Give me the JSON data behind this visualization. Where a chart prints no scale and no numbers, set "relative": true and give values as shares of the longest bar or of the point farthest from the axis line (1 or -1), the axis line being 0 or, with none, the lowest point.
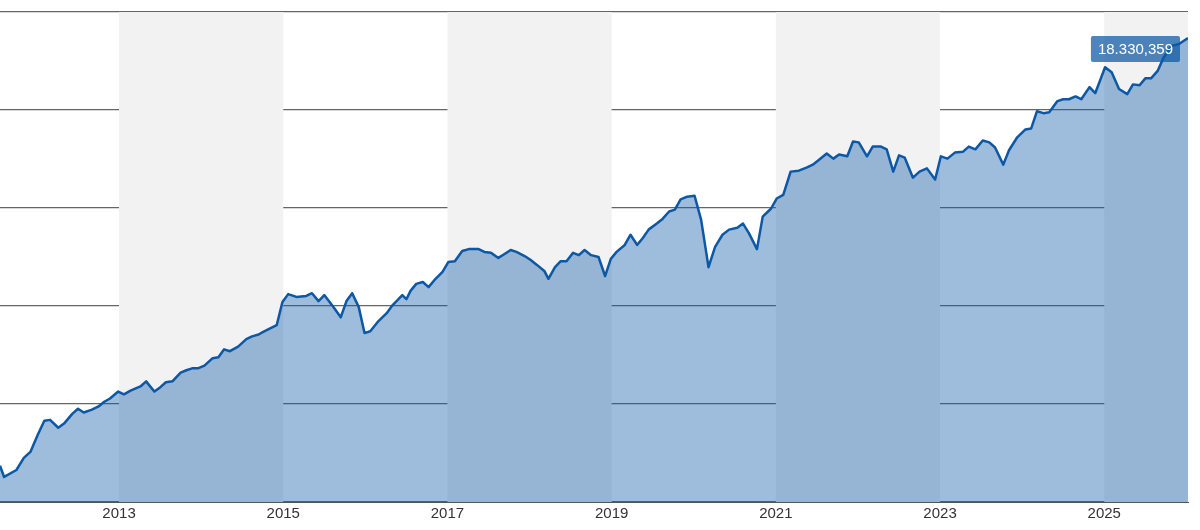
{
  "chart_data": {
    "type": "area",
    "relative": true,
    "grid": "y",
    "annotations": [
      {
        "text": "18.330,359",
        "x": 2026.02,
        "y": 1
      }
    ],
    "tick_labels": "x",
    "legend": false,
    "marker": "none",
    "line_style": "solid",
    "xlim": [
      2011.55,
      2026.02
    ],
    "xticks": [
      2013,
      2015,
      2017,
      2019,
      2021,
      2023,
      2025
    ],
    "bands": [
      {
        "axis": "x",
        "from": 2013,
        "to": 2015,
        "color": "#f2f2f2"
      },
      {
        "axis": "x",
        "from": 2017,
        "to": 2019,
        "color": "#f2f2f2"
      },
      {
        "axis": "x",
        "from": 2021,
        "to": 2023,
        "color": "#f2f2f2"
      },
      {
        "axis": "x",
        "from": 2025,
        "to": 2026.02,
        "color": "#f2f2f2"
      }
    ],
    "series": [
      {
        "color": "#0d58a5",
        "x": [
          2011.55,
          2011.6,
          2011.75,
          2011.84,
          2011.92,
          2012.01,
          2012.09,
          2012.16,
          2012.26,
          2012.33,
          2012.43,
          2012.5,
          2012.57,
          2012.67,
          2012.75,
          2012.82,
          2012.89,
          2012.99,
          2013.06,
          2013.14,
          2013.26,
          2013.33,
          2013.43,
          2013.5,
          2013.57,
          2013.65,
          2013.75,
          2013.82,
          2013.89,
          2013.96,
          2014.04,
          2014.14,
          2014.21,
          2014.28,
          2014.35,
          2014.45,
          2014.55,
          2014.62,
          2014.7,
          2014.75,
          2014.84,
          2014.92,
          2014.99,
          2015.06,
          2015.16,
          2015.28,
          2015.35,
          2015.43,
          2015.5,
          2015.62,
          2015.7,
          2015.77,
          2015.84,
          2015.92,
          2015.99,
          2016.06,
          2016.16,
          2016.26,
          2016.33,
          2016.38,
          2016.45,
          2016.5,
          2016.55,
          2016.62,
          2016.7,
          2016.77,
          2016.84,
          2016.94,
          2017.01,
          2017.09,
          2017.18,
          2017.26,
          2017.38,
          2017.45,
          2017.53,
          2017.62,
          2017.7,
          2017.77,
          2017.84,
          2017.94,
          2018.01,
          2018.09,
          2018.18,
          2018.23,
          2018.31,
          2018.38,
          2018.45,
          2018.53,
          2018.6,
          2018.67,
          2018.75,
          2018.84,
          2018.92,
          2018.99,
          2019.06,
          2019.16,
          2019.23,
          2019.31,
          2019.38,
          2019.45,
          2019.55,
          2019.62,
          2019.7,
          2019.77,
          2019.84,
          2019.92,
          2020.01,
          2020.09,
          2020.18,
          2020.26,
          2020.35,
          2020.43,
          2020.53,
          2020.6,
          2020.67,
          2020.77,
          2020.84,
          2020.94,
          2021.01,
          2021.09,
          2021.18,
          2021.28,
          2021.38,
          2021.45,
          2021.53,
          2021.62,
          2021.7,
          2021.77,
          2021.87,
          2021.94,
          2022.01,
          2022.11,
          2022.18,
          2022.28,
          2022.35,
          2022.43,
          2022.5,
          2022.57,
          2022.67,
          2022.75,
          2022.84,
          2022.94,
          2023.01,
          2023.09,
          2023.18,
          2023.28,
          2023.35,
          2023.43,
          2023.52,
          2023.6,
          2023.67,
          2023.77,
          2023.84,
          2023.94,
          2024.04,
          2024.11,
          2024.18,
          2024.26,
          2024.33,
          2024.43,
          2024.5,
          2024.57,
          2024.65,
          2024.72,
          2024.82,
          2024.89,
          2025.01,
          2025.09,
          2025.18,
          2025.28,
          2025.35,
          2025.43,
          2025.5,
          2025.57,
          2025.65,
          2025.72,
          2025.82,
          2025.91,
          2026.02
        ],
        "values": [
          0.078,
          0.054,
          0.069,
          0.095,
          0.108,
          0.145,
          0.175,
          0.177,
          0.16,
          0.169,
          0.19,
          0.201,
          0.193,
          0.199,
          0.206,
          0.216,
          0.223,
          0.238,
          0.232,
          0.24,
          0.249,
          0.26,
          0.238,
          0.247,
          0.258,
          0.26,
          0.279,
          0.284,
          0.288,
          0.288,
          0.294,
          0.31,
          0.312,
          0.329,
          0.325,
          0.335,
          0.351,
          0.357,
          0.361,
          0.366,
          0.374,
          0.381,
          0.431,
          0.448,
          0.442,
          0.444,
          0.45,
          0.433,
          0.446,
          0.418,
          0.398,
          0.433,
          0.45,
          0.42,
          0.364,
          0.368,
          0.39,
          0.407,
          0.424,
          0.433,
          0.446,
          0.437,
          0.455,
          0.47,
          0.474,
          0.463,
          0.478,
          0.496,
          0.517,
          0.519,
          0.541,
          0.545,
          0.545,
          0.539,
          0.537,
          0.526,
          0.535,
          0.543,
          0.539,
          0.53,
          0.522,
          0.511,
          0.498,
          0.481,
          0.506,
          0.519,
          0.519,
          0.537,
          0.532,
          0.543,
          0.532,
          0.528,
          0.487,
          0.524,
          0.539,
          0.554,
          0.576,
          0.554,
          0.569,
          0.587,
          0.6,
          0.61,
          0.626,
          0.63,
          0.652,
          0.658,
          0.66,
          0.608,
          0.506,
          0.55,
          0.576,
          0.587,
          0.591,
          0.6,
          0.58,
          0.545,
          0.615,
          0.632,
          0.654,
          0.662,
          0.712,
          0.714,
          0.721,
          0.727,
          0.738,
          0.751,
          0.74,
          0.749,
          0.745,
          0.777,
          0.775,
          0.745,
          0.766,
          0.766,
          0.76,
          0.712,
          0.747,
          0.742,
          0.699,
          0.712,
          0.719,
          0.695,
          0.745,
          0.74,
          0.753,
          0.755,
          0.766,
          0.76,
          0.779,
          0.775,
          0.764,
          0.727,
          0.758,
          0.786,
          0.803,
          0.805,
          0.842,
          0.838,
          0.84,
          0.864,
          0.868,
          0.868,
          0.874,
          0.868,
          0.894,
          0.881,
          0.937,
          0.926,
          0.89,
          0.879,
          0.9,
          0.898,
          0.913,
          0.913,
          0.929,
          0.957,
          0.983,
          0.987,
          1
        ]
      }
    ]
  }
}
